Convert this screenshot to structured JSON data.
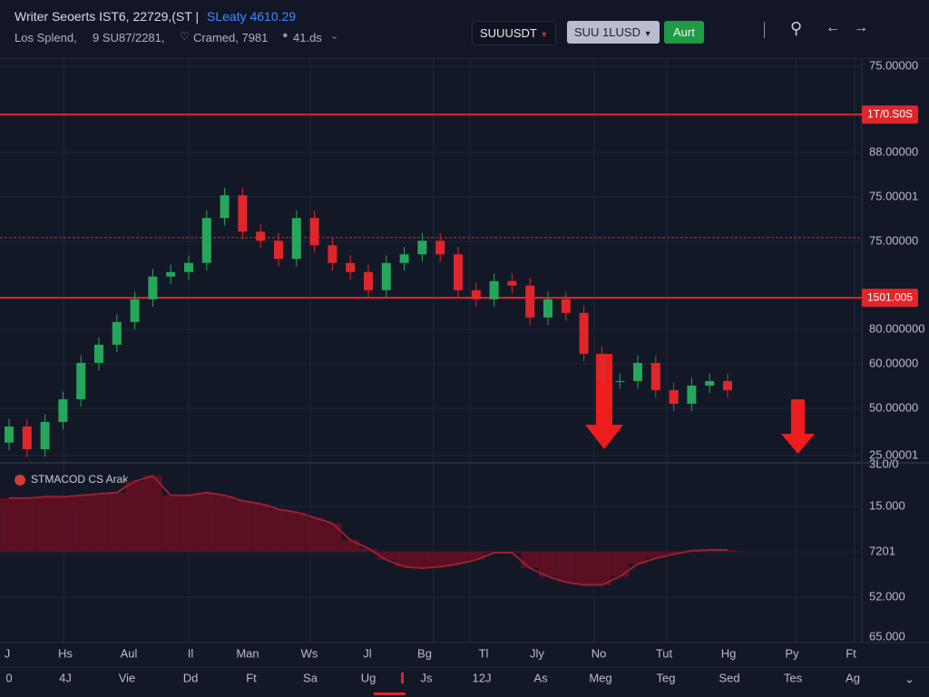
{
  "header": {
    "title": "Writer Seoerts IST6, 22729,(ST |",
    "price": "SLeaty 4610.29",
    "meta": [
      "Los Splend,",
      "9 SU87/2281,",
      "Cramed, 7981",
      "41.ds"
    ]
  },
  "toolbar": {
    "symbol": "SUUUSDT",
    "pair": "SUU 1LUSD",
    "action": "Aurt"
  },
  "price_axis_labels": [
    "75.00000",
    "88.00000",
    "75.00001",
    "75.00000",
    "80.000000",
    "60.00000",
    "50.00000",
    "25.00001"
  ],
  "indicator_axis_labels": [
    "3L0/0",
    "15.000",
    "7201",
    "52.000",
    "65.000"
  ],
  "x_labels_top": [
    "J",
    "Hs",
    "Aul",
    "Il",
    "Man",
    "Ws",
    "Jl",
    "Bg",
    "Tl",
    "Jly",
    "No",
    "Tut",
    "Hg",
    "Py",
    "Ft"
  ],
  "x_labels_bottom": [
    "0",
    "4J",
    "Vie",
    "Dd",
    "Ft",
    "Sa",
    "Ug",
    "Js",
    "12J",
    "As",
    "Meg",
    "Teg",
    "Sed",
    "Tes",
    "Ag"
  ],
  "chart_data": [
    {
      "type": "candlestick",
      "ylim": [
        20,
        100
      ],
      "up_color": "#26a65b",
      "down_color": "#e0262b",
      "open": [
        24,
        27.2,
        22.7,
        28.1,
        32.6,
        39.8,
        43.4,
        47.9,
        52.4,
        56.9,
        57.8,
        59.6,
        68.5,
        73.0,
        65.8,
        64.0,
        60.4,
        68.5,
        63.1,
        59.6,
        57.8,
        54.2,
        59.6,
        61.3,
        64.0,
        61.3,
        54.2,
        52.4,
        56.0,
        55.1,
        48.8,
        52.4,
        49.7,
        41.6,
        36.2,
        36.2,
        39.8,
        34.4,
        31.7,
        35.3,
        36.2
      ],
      "high": [
        28.7,
        28.7,
        29.6,
        34.1,
        41.3,
        44.9,
        49.4,
        53.9,
        58.4,
        59.3,
        61.1,
        70.0,
        74.5,
        74.5,
        67.3,
        65.5,
        70.0,
        70.0,
        64.6,
        61.1,
        59.3,
        61.1,
        62.8,
        65.5,
        65.5,
        62.8,
        55.7,
        57.5,
        57.5,
        56.6,
        53.9,
        53.9,
        51.2,
        43.1,
        37.7,
        41.3,
        41.3,
        35.9,
        36.8,
        37.7,
        37.7
      ],
      "low": [
        22.5,
        21.2,
        21.2,
        26.6,
        31.1,
        38.3,
        41.9,
        46.4,
        50.9,
        55.4,
        56.3,
        58.1,
        67.0,
        64.3,
        62.5,
        58.9,
        58.9,
        61.6,
        58.1,
        56.3,
        52.7,
        52.7,
        58.1,
        59.8,
        59.8,
        52.7,
        50.9,
        50.9,
        53.6,
        47.3,
        47.3,
        48.2,
        40.1,
        34.7,
        34.7,
        34.7,
        32.9,
        30.2,
        30.2,
        33.8,
        32.9
      ],
      "close": [
        27.2,
        22.7,
        28.1,
        32.6,
        39.8,
        43.4,
        47.9,
        52.4,
        56.9,
        57.8,
        59.6,
        68.5,
        73.0,
        65.8,
        64.0,
        60.4,
        68.5,
        63.1,
        59.6,
        57.8,
        54.2,
        59.6,
        61.3,
        64.0,
        61.3,
        54.2,
        52.4,
        56.0,
        55.1,
        48.8,
        52.4,
        49.7,
        41.6,
        36.2,
        36.2,
        39.8,
        34.4,
        31.7,
        35.3,
        36.2,
        34.4
      ],
      "levels": [
        {
          "value": 89,
          "label": "1T/0.S0S",
          "style": "solid"
        },
        {
          "value": 64.6,
          "style": "dashed"
        },
        {
          "value": 52.7,
          "label": "1501.005",
          "style": "solid"
        }
      ],
      "level_color": "#e0262b"
    },
    {
      "type": "histogram",
      "name": "STMACOD CS Arak",
      "ylim": [
        -60,
        60
      ],
      "color": "#5a1020",
      "line_color": "#9a1f33",
      "values": [
        38,
        38,
        39,
        39,
        40,
        41,
        42,
        50,
        54,
        40,
        40,
        42,
        40,
        36,
        34,
        30,
        28,
        24,
        20,
        8,
        2,
        -6,
        -11,
        -12,
        -11,
        -9,
        -6,
        -1,
        -1,
        -12,
        -18,
        -22,
        -24,
        -24,
        -18,
        -9,
        -5,
        -2,
        0.5,
        1,
        1
      ]
    }
  ]
}
